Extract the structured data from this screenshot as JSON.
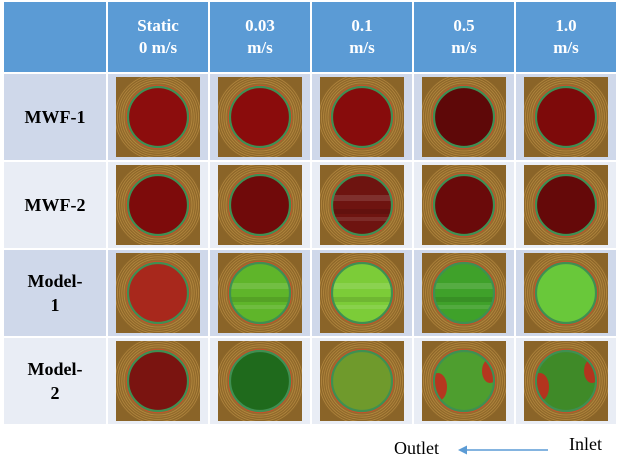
{
  "header": {
    "columns": [
      {
        "line1": "Static",
        "line2": "0 m/s"
      },
      {
        "line1": "0.03",
        "line2": "m/s"
      },
      {
        "line1": "0.1",
        "line2": "m/s"
      },
      {
        "line1": "0.5",
        "line2": "m/s"
      },
      {
        "line1": "1.0",
        "line2": "m/s"
      }
    ]
  },
  "rows": [
    {
      "line1": "MWF-1",
      "line2": "",
      "cells": [
        {
          "inner": "#8c0d0d",
          "band": "none"
        },
        {
          "inner": "#8a0c0c",
          "band": "none"
        },
        {
          "inner": "#870c0c",
          "band": "none"
        },
        {
          "inner": "#5e0808",
          "band": "none"
        },
        {
          "inner": "#7d0a0a",
          "band": "none"
        }
      ]
    },
    {
      "line1": "MWF-2",
      "line2": "",
      "cells": [
        {
          "inner": "#7d0b0b",
          "band": "none"
        },
        {
          "inner": "#700a0a",
          "band": "none"
        },
        {
          "inner": "#6e1410",
          "band": "streak"
        },
        {
          "inner": "#6a0a0a",
          "band": "none"
        },
        {
          "inner": "#650909",
          "band": "none"
        }
      ]
    },
    {
      "line1": "Model-",
      "line2": "1",
      "cells": [
        {
          "inner": "#a8281c",
          "band": "none"
        },
        {
          "inner": "#5fb52a",
          "band": "streak"
        },
        {
          "inner": "#7ccc38",
          "band": "streak"
        },
        {
          "inner": "#3fa12a",
          "band": "streak"
        },
        {
          "inner": "#69c83a",
          "band": "none"
        }
      ]
    },
    {
      "line1": "Model-",
      "line2": "2",
      "cells": [
        {
          "inner": "#7a1410",
          "band": "none"
        },
        {
          "inner": "#1f6a1c",
          "band": "none"
        },
        {
          "inner": "#6f9a2c",
          "band": "none"
        },
        {
          "inner": "#4e9e2f",
          "band": "red-edge"
        },
        {
          "inner": "#3f8a28",
          "band": "red-edge"
        }
      ]
    }
  ],
  "colors": {
    "header_bg": "#5b9bd5",
    "row_odd_bg": "#cfd8ea",
    "row_even_bg": "#e9edf5",
    "outer_plate": "#b0843a",
    "ring": "#d0a050",
    "rim": "#3f8f52",
    "arrow": "#5b9bd5"
  },
  "flow": {
    "outlet": "Outlet",
    "inlet": "Inlet"
  }
}
